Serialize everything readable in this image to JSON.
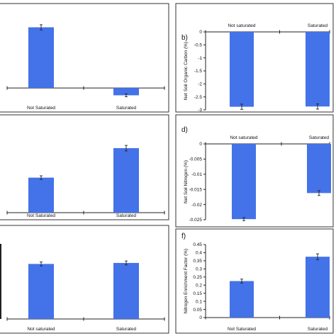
{
  "figure": {
    "bar_color": "#4472e8",
    "axis_color": "#222222",
    "panel_border_color": "#333333"
  },
  "chart_data": [
    {
      "panel": "a",
      "type": "bar",
      "label": "",
      "ylabel": "",
      "categories": [
        "Not Saturated",
        "Saturated"
      ],
      "values": [
        1.65,
        -0.2
      ],
      "errors": [
        0.07,
        0.04
      ],
      "ylim": [
        -0.5,
        2.2
      ],
      "yticks": [],
      "x_labels_position": "bottom",
      "frame": "partial-left"
    },
    {
      "panel": "b",
      "type": "bar",
      "label": "b)",
      "ylabel": "Net Soil Organic Carbon (%)",
      "categories": [
        "Not saturated",
        "Saturated"
      ],
      "values": [
        -2.88,
        -2.87
      ],
      "errors": [
        0.1,
        0.1
      ],
      "ylim": [
        -3,
        0
      ],
      "yticks": [
        "0",
        "-0.5",
        "-1",
        "-1.5",
        "-2",
        "-2.5",
        "-3"
      ],
      "ytick_values": [
        0,
        -0.5,
        -1,
        -1.5,
        -2,
        -2.5,
        -3
      ],
      "x_labels_position": "top",
      "frame": "box"
    },
    {
      "panel": "c",
      "type": "bar",
      "label": "",
      "ylabel": "",
      "categories": [
        "Not Saturated",
        "Saturated"
      ],
      "values": [
        0.38,
        0.7
      ],
      "errors": [
        0.02,
        0.03
      ],
      "ylim": [
        0,
        1.0
      ],
      "yticks": [],
      "x_labels_position": "bottom",
      "frame": "partial-left"
    },
    {
      "panel": "d",
      "type": "bar",
      "label": "d)",
      "ylabel": "Net Soil Nitrogen (%)",
      "categories": [
        "Not saturated",
        "Saturated"
      ],
      "values": [
        -0.0248,
        -0.0162
      ],
      "errors": [
        0.0005,
        0.0008
      ],
      "ylim": [
        -0.025,
        0
      ],
      "yticks": [
        "0",
        "-0.005",
        "-0.01",
        "-0.015",
        "-0.02",
        "-0.025"
      ],
      "ytick_values": [
        0,
        -0.005,
        -0.01,
        -0.015,
        -0.02,
        -0.025
      ],
      "x_labels_position": "top",
      "frame": "box"
    },
    {
      "panel": "e",
      "type": "bar",
      "label": "",
      "ylabel": "",
      "categories": [
        "Not saturated",
        "Saturated"
      ],
      "values": [
        0.55,
        0.56
      ],
      "errors": [
        0.02,
        0.02
      ],
      "ylim": [
        0,
        0.85
      ],
      "yticks": [],
      "x_labels_position": "bottom",
      "frame": "left-axis"
    },
    {
      "panel": "f",
      "type": "bar",
      "label": "f)",
      "ylabel": "Nitrogen Enrichment Factor (%)",
      "categories": [
        "Not Saturated",
        "Saturated"
      ],
      "values": [
        0.225,
        0.375
      ],
      "errors": [
        0.012,
        0.018
      ],
      "ylim": [
        0,
        0.45
      ],
      "yticks": [
        "0",
        "0.05",
        "0.1",
        "0.15",
        "0.2",
        "0.25",
        "0.3",
        "0.35",
        "0.4",
        "0.45"
      ],
      "ytick_values": [
        0,
        0.05,
        0.1,
        0.15,
        0.2,
        0.25,
        0.3,
        0.35,
        0.4,
        0.45
      ],
      "x_labels_position": "bottom",
      "frame": "box"
    }
  ]
}
